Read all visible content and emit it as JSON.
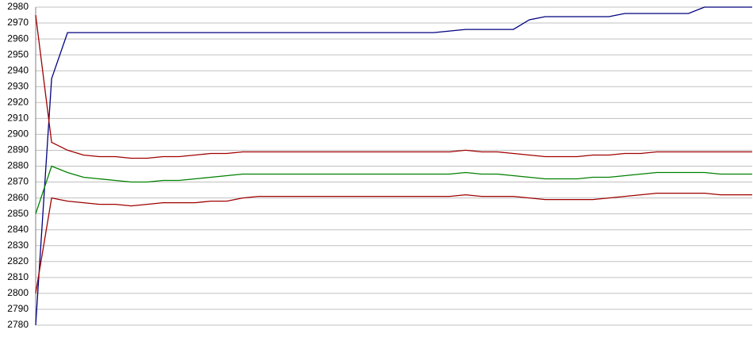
{
  "chart_data": {
    "type": "line",
    "categories": [
      null,
      null,
      null,
      null,
      null,
      null,
      null,
      null,
      null,
      null,
      null,
      null,
      null,
      null,
      null,
      null,
      null,
      null,
      null,
      null,
      null,
      null,
      null,
      null,
      null,
      null,
      null,
      null,
      null,
      null,
      null,
      null,
      null,
      null,
      null,
      null,
      null,
      null,
      null,
      null,
      null,
      null,
      null,
      null,
      null,
      null
    ],
    "series": [
      {
        "color": "#000080",
        "values": [
          2780,
          2935,
          2964,
          2964,
          2964,
          2964,
          2964,
          2964,
          2964,
          2964,
          2964,
          2964,
          2964,
          2964,
          2964,
          2964,
          2964,
          2964,
          2964,
          2964,
          2964,
          2964,
          2964,
          2964,
          2964,
          2964,
          2965,
          2966,
          2966,
          2966,
          2966,
          2972,
          2974,
          2974,
          2974,
          2974,
          2974,
          2976,
          2976,
          2976,
          2976,
          2976,
          2980,
          2980,
          2980,
          2980
        ]
      },
      {
        "color": "#a00000",
        "values": [
          2975,
          2895,
          2890,
          2887,
          2886,
          2886,
          2885,
          2885,
          2886,
          2886,
          2887,
          2888,
          2888,
          2889,
          2889,
          2889,
          2889,
          2889,
          2889,
          2889,
          2889,
          2889,
          2889,
          2889,
          2889,
          2889,
          2889,
          2890,
          2889,
          2889,
          2888,
          2887,
          2886,
          2886,
          2886,
          2887,
          2887,
          2888,
          2888,
          2889,
          2889,
          2889,
          2889,
          2889,
          2889,
          2889
        ]
      },
      {
        "color": "#008000",
        "values": [
          2850,
          2880,
          2876,
          2873,
          2872,
          2871,
          2870,
          2870,
          2871,
          2871,
          2872,
          2873,
          2874,
          2875,
          2875,
          2875,
          2875,
          2875,
          2875,
          2875,
          2875,
          2875,
          2875,
          2875,
          2875,
          2875,
          2875,
          2876,
          2875,
          2875,
          2874,
          2873,
          2872,
          2872,
          2872,
          2873,
          2873,
          2874,
          2875,
          2876,
          2876,
          2876,
          2876,
          2875,
          2875,
          2875
        ]
      },
      {
        "color": "#a00000",
        "values": [
          2800,
          2860,
          2858,
          2857,
          2856,
          2856,
          2855,
          2856,
          2857,
          2857,
          2857,
          2858,
          2858,
          2860,
          2861,
          2861,
          2861,
          2861,
          2861,
          2861,
          2861,
          2861,
          2861,
          2861,
          2861,
          2861,
          2861,
          2862,
          2861,
          2861,
          2861,
          2860,
          2859,
          2859,
          2859,
          2859,
          2860,
          2861,
          2862,
          2863,
          2863,
          2863,
          2863,
          2862,
          2862,
          2862
        ]
      }
    ],
    "ylim": [
      2780,
      2980
    ],
    "yticks": [
      2780,
      2790,
      2800,
      2810,
      2820,
      2830,
      2840,
      2850,
      2860,
      2870,
      2880,
      2890,
      2900,
      2910,
      2920,
      2930,
      2940,
      2950,
      2960,
      2970,
      2980
    ],
    "grid": true
  }
}
